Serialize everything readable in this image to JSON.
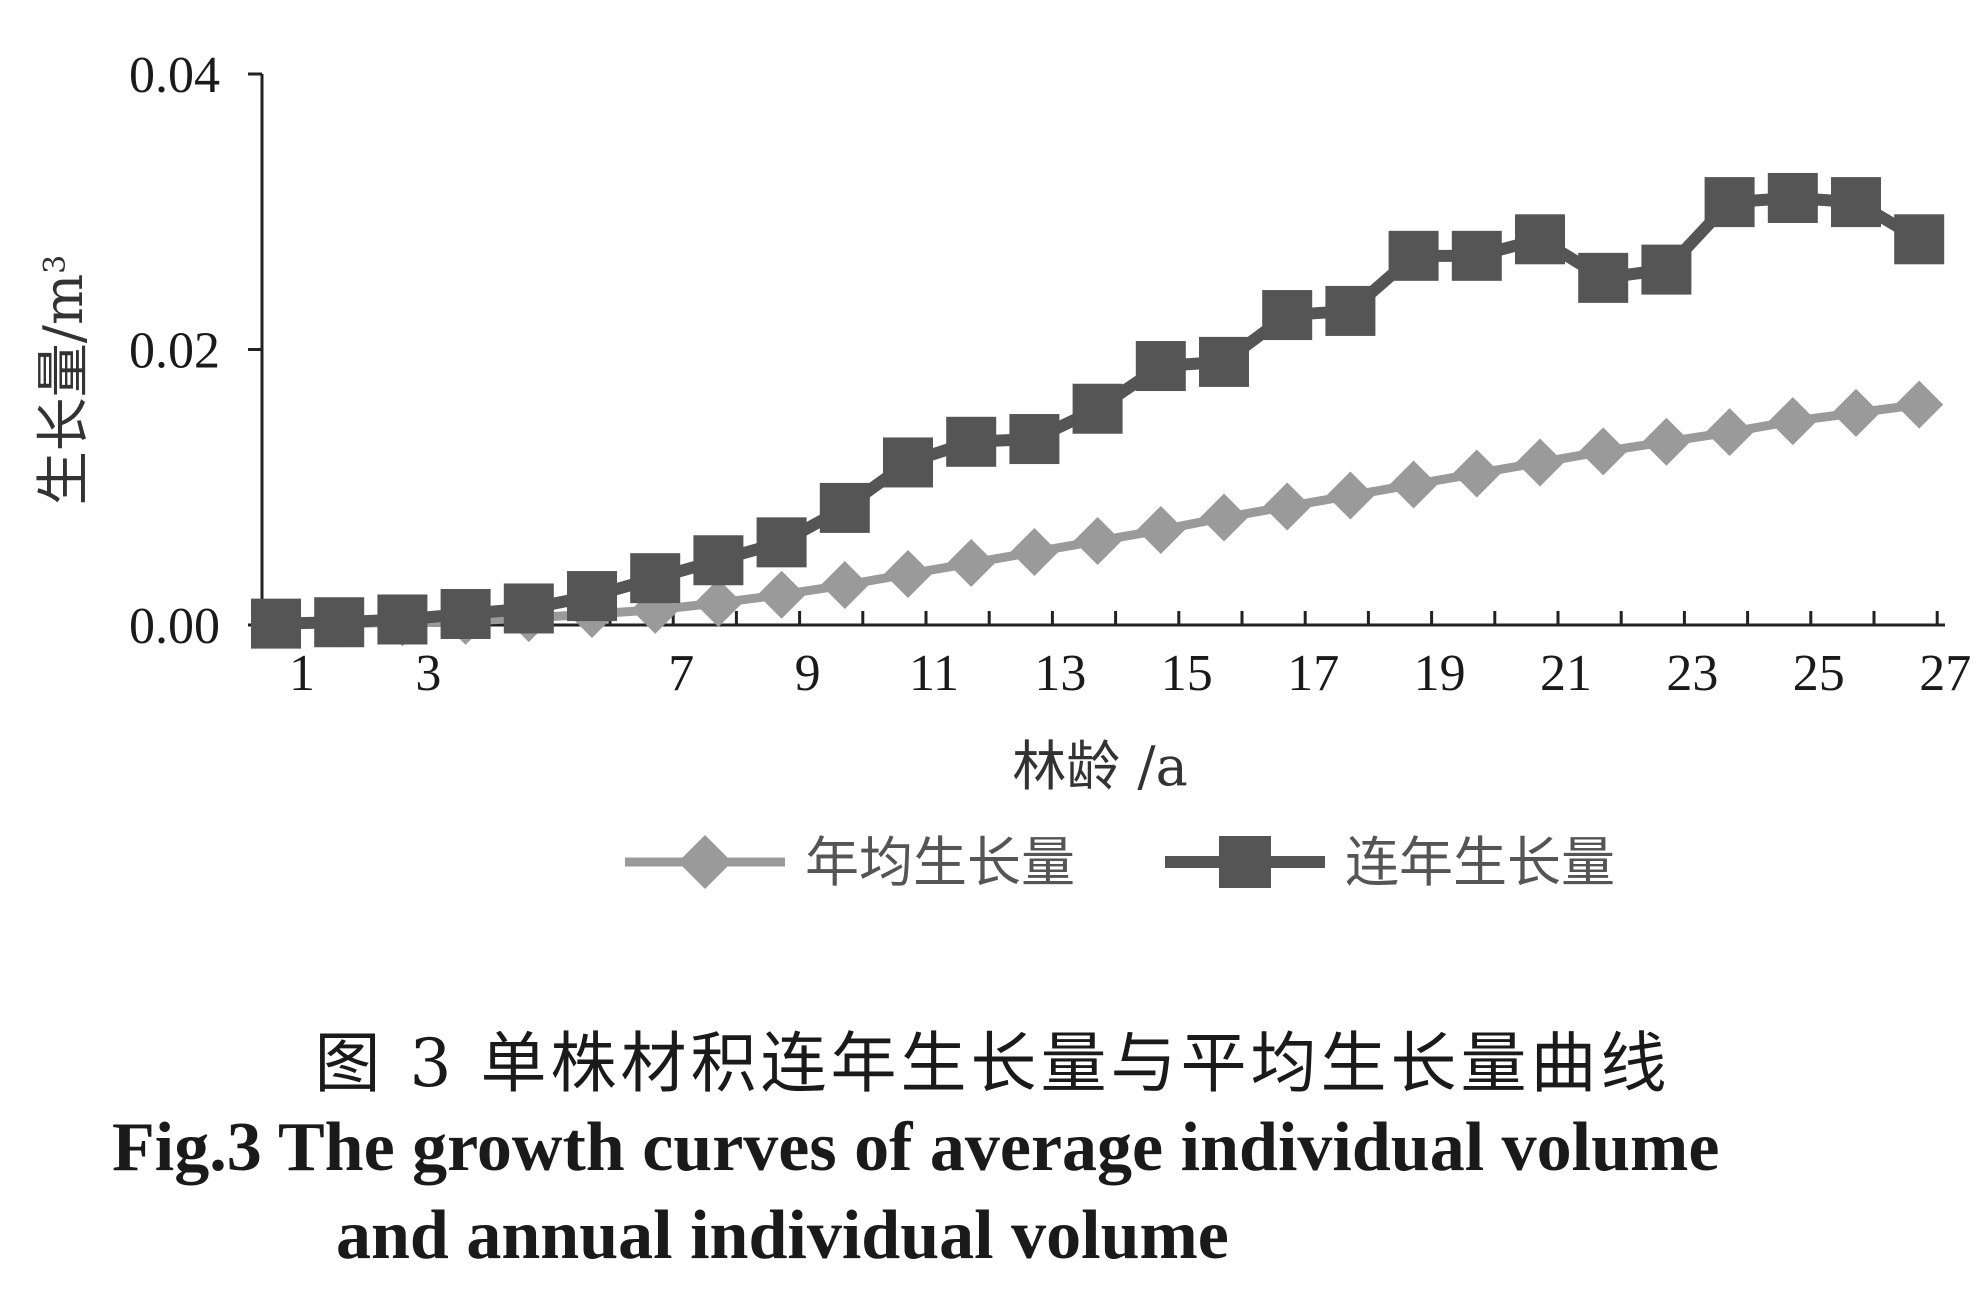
{
  "chart_data": {
    "type": "line",
    "ylabel": "生长量/m",
    "ylabel_sup": "3",
    "xlabel": "林龄 /a",
    "ylim": [
      0,
      0.04
    ],
    "yticks": [
      {
        "value": 0.0,
        "label": "0.00"
      },
      {
        "value": 0.02,
        "label": "0.02"
      },
      {
        "value": 0.04,
        "label": "0.04"
      }
    ],
    "x": [
      1,
      2,
      3,
      4,
      5,
      6,
      7,
      8,
      9,
      10,
      11,
      12,
      13,
      14,
      15,
      16,
      17,
      18,
      19,
      20,
      21,
      22,
      23,
      24,
      25,
      26,
      27
    ],
    "xtick_labels": [
      "1",
      "3",
      "7",
      "9",
      "11",
      "13",
      "15",
      "17",
      "19",
      "21",
      "23",
      "25",
      "27"
    ],
    "xtick_label_values": [
      1,
      3,
      7,
      9,
      11,
      13,
      15,
      17,
      19,
      21,
      23,
      25,
      27
    ],
    "legend_position": "bottom",
    "series": [
      {
        "name": "年均生长量",
        "marker": "diamond",
        "color": "#9a9a9a",
        "values": [
          0.0001,
          0.0001,
          0.0002,
          0.0003,
          0.0005,
          0.0008,
          0.0011,
          0.0016,
          0.0022,
          0.0029,
          0.0037,
          0.0045,
          0.0053,
          0.0061,
          0.0069,
          0.0078,
          0.0086,
          0.0094,
          0.0102,
          0.011,
          0.0118,
          0.0126,
          0.0133,
          0.014,
          0.0148,
          0.0154,
          0.016
        ]
      },
      {
        "name": "连年生长量",
        "marker": "square",
        "color": "#555555",
        "values": [
          0.0001,
          0.0002,
          0.0004,
          0.0008,
          0.0012,
          0.0021,
          0.0034,
          0.0047,
          0.006,
          0.0085,
          0.0118,
          0.0133,
          0.0135,
          0.0157,
          0.0188,
          0.0191,
          0.0225,
          0.0228,
          0.0268,
          0.0268,
          0.028,
          0.0252,
          0.0258,
          0.0307,
          0.031,
          0.0307,
          0.028
        ]
      }
    ]
  },
  "caption": {
    "cn": "图 3   单株材积连年生长量与平均生长量曲线",
    "en_line1": "Fig.3   The growth curves of average individual volume",
    "en_line2": "and annual individual volume"
  }
}
